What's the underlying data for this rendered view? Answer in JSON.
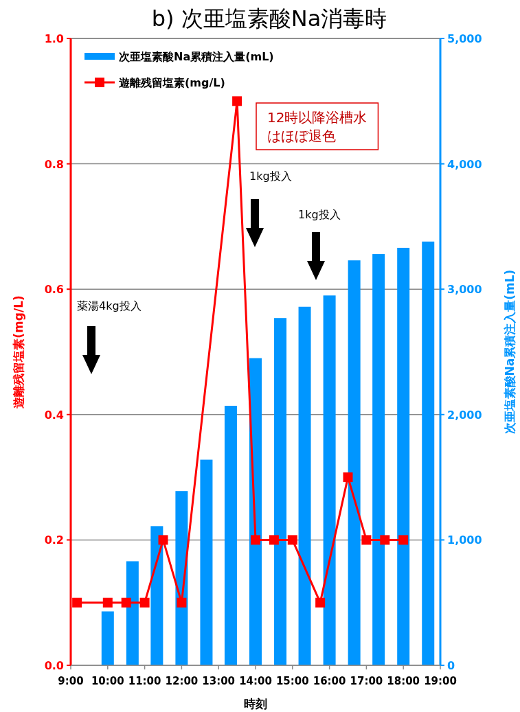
{
  "chart_data": {
    "type": "bar",
    "title": "b) 次亜塩素酸Na消毒時",
    "xlabel": "時刻",
    "ylabel": "遊離残留塩素(mg/L)",
    "y2label": "次亜塩素酸Na累積注入量(mL)",
    "xlim": [
      9,
      19
    ],
    "xticks": [
      {
        "value": 9,
        "label": "9:00"
      },
      {
        "value": 10,
        "label": "10:00"
      },
      {
        "value": 11,
        "label": "11:00"
      },
      {
        "value": 12,
        "label": "12:00"
      },
      {
        "value": 13,
        "label": "13:00"
      },
      {
        "value": 14,
        "label": "14:00"
      },
      {
        "value": 15,
        "label": "15:00"
      },
      {
        "value": 16,
        "label": "16:00"
      },
      {
        "value": 17,
        "label": "17:00"
      },
      {
        "value": 18,
        "label": "18:00"
      },
      {
        "value": 19,
        "label": "19:00"
      }
    ],
    "ylim": [
      0,
      1
    ],
    "yticks": [
      {
        "value": 0,
        "label": "0.0"
      },
      {
        "value": 0.2,
        "label": "0.2"
      },
      {
        "value": 0.4,
        "label": "0.4"
      },
      {
        "value": 0.6,
        "label": "0.6"
      },
      {
        "value": 0.8,
        "label": "0.8"
      },
      {
        "value": 1,
        "label": "1.0"
      }
    ],
    "y2lim": [
      0,
      5000
    ],
    "y2ticks": [
      0,
      {
        "value": 1000,
        "label": "1,000"
      },
      {
        "value": 2000,
        "label": "2,000"
      },
      {
        "value": 3000,
        "label": "3,000"
      },
      {
        "value": 4000,
        "label": "4,000"
      },
      {
        "value": 5000,
        "label": "5,000"
      }
    ],
    "grid": "y",
    "legend": "top left",
    "marker": "square",
    "series": [
      {
        "name": "次亜塩素酸Na累積注入量(mL)",
        "axis": "y2",
        "color": "#0096ff",
        "x": [
          10,
          10.67,
          11.33,
          12,
          12.67,
          13.33,
          14,
          14.67,
          15.33,
          16,
          16.67,
          17.33,
          18,
          18.67
        ],
        "values": [
          430,
          830,
          1110,
          1390,
          1640,
          2070,
          2450,
          2770,
          2860,
          2950,
          3230,
          3280,
          3330,
          3380
        ]
      },
      {
        "name": "遊離残留塩素(mg/L)",
        "type": "line",
        "color": "#ff0000",
        "x": [
          9.17,
          10,
          10.5,
          11,
          11.5,
          12,
          13.5,
          14,
          14.5,
          15,
          15.75,
          16.5,
          17,
          17.5,
          18
        ],
        "values": [
          0.1,
          0.1,
          0.1,
          0.1,
          0.2,
          0.1,
          0.9,
          0.2,
          0.2,
          0.2,
          0.1,
          0.3,
          0.2,
          0.2,
          0.2
        ]
      }
    ],
    "annotations": [
      "薬湯4kg投入",
      "1kg投入",
      "1kg投入",
      "12時以降浴槽水",
      "はほぼ退色"
    ]
  }
}
